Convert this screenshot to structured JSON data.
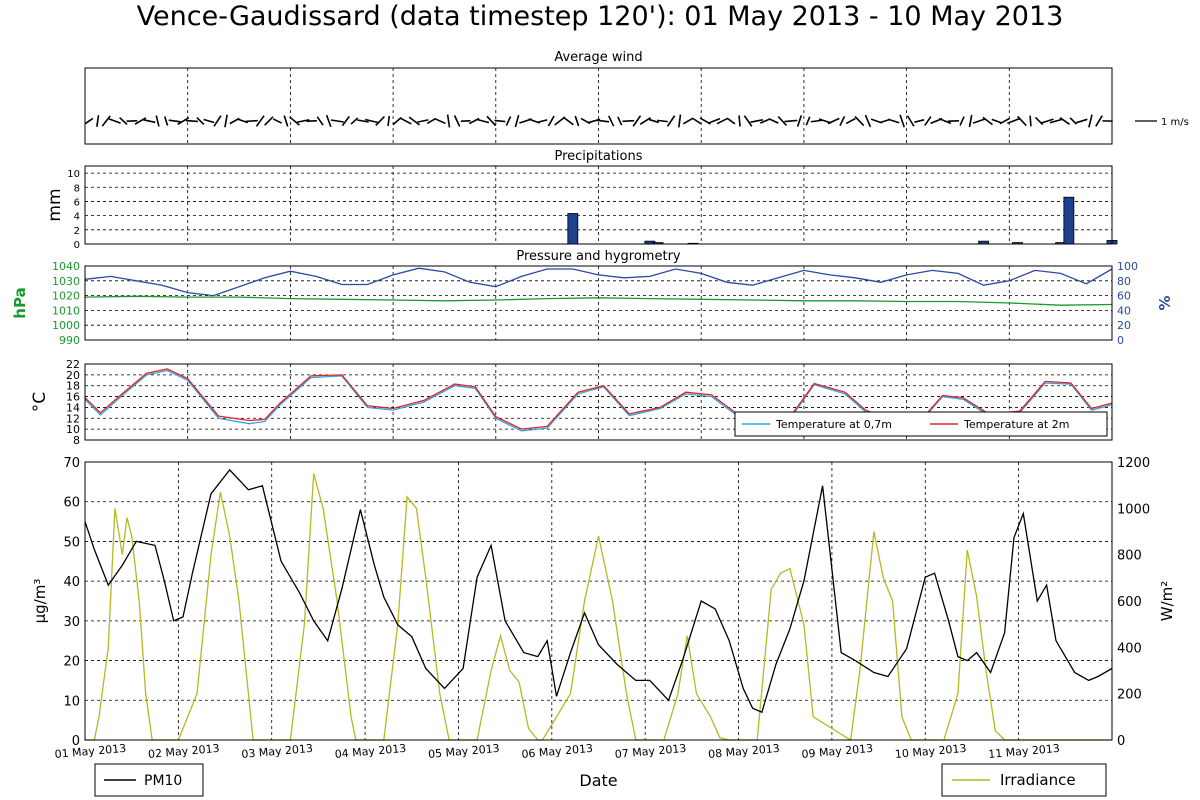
{
  "title": "Vence-Gaudissard (data timestep 120'): 01 May 2013 - 10 May 2013",
  "chart_data": [
    {
      "type": "wind-barbs",
      "title": "Average wind",
      "x_range_days": [
        0,
        10
      ],
      "scale_label": "1 m/s",
      "note": "wind direction/speed shown as short line segments every 2 h"
    },
    {
      "type": "bar",
      "title": "Precipitations",
      "ylabel": "mm",
      "ylim": [
        0,
        11
      ],
      "yticks": [
        0,
        2,
        4,
        6,
        8,
        10
      ],
      "x_range_days": [
        0,
        10
      ],
      "grid": true,
      "color": "#1f3f8f",
      "bars": [
        {
          "x": 4.75,
          "y": 4.3
        },
        {
          "x": 5.5,
          "y": 0.4
        },
        {
          "x": 5.58,
          "y": 0.2
        },
        {
          "x": 5.92,
          "y": 0.1
        },
        {
          "x": 8.75,
          "y": 0.4
        },
        {
          "x": 9.08,
          "y": 0.2
        },
        {
          "x": 9.5,
          "y": 0.2
        },
        {
          "x": 9.58,
          "y": 6.6
        },
        {
          "x": 10.0,
          "y": 0.5
        }
      ]
    },
    {
      "type": "line",
      "title": "Pressure and hygrometry",
      "ylabel": "hPa",
      "ylabel_right": "%",
      "ylim": [
        990,
        1040
      ],
      "yticks": [
        990,
        1000,
        1010,
        1020,
        1030,
        1040
      ],
      "ylim_right": [
        0,
        100
      ],
      "yticks_right": [
        0,
        20,
        40,
        60,
        80,
        100
      ],
      "left_color": "#1a9a2e",
      "right_color": "#2a4aa0",
      "grid": true,
      "series": [
        {
          "axis": "left",
          "color": "#1a9a2e",
          "x": [
            0,
            0.5,
            1,
            1.5,
            2,
            2.5,
            3,
            3.5,
            4,
            4.5,
            5,
            5.5,
            6,
            6.5,
            7,
            7.5,
            8,
            8.5,
            9,
            9.5,
            10
          ],
          "y": [
            1019,
            1019.5,
            1019,
            1019,
            1018,
            1017.5,
            1017,
            1016.5,
            1017,
            1018,
            1018.5,
            1018,
            1017.5,
            1017,
            1016.5,
            1016.5,
            1016,
            1016,
            1015,
            1013.5,
            1014
          ]
        },
        {
          "axis": "right",
          "color": "#2a4aa0",
          "x": [
            0,
            0.25,
            0.5,
            0.75,
            1,
            1.25,
            1.5,
            1.75,
            2,
            2.25,
            2.5,
            2.75,
            3,
            3.25,
            3.5,
            3.75,
            4,
            4.25,
            4.5,
            4.75,
            5,
            5.25,
            5.5,
            5.75,
            6,
            6.25,
            6.5,
            6.75,
            7,
            7.25,
            7.5,
            7.75,
            8,
            8.25,
            8.5,
            8.75,
            9,
            9.25,
            9.5,
            9.75,
            10
          ],
          "y": [
            82,
            86,
            80,
            74,
            64,
            60,
            72,
            84,
            93,
            86,
            75,
            75,
            88,
            97,
            92,
            78,
            72,
            86,
            96,
            96,
            88,
            84,
            86,
            96,
            90,
            78,
            74,
            84,
            94,
            88,
            84,
            78,
            88,
            94,
            90,
            74,
            80,
            94,
            90,
            76,
            96
          ]
        }
      ]
    },
    {
      "type": "line",
      "title": "",
      "ylabel": "°C",
      "ylim": [
        8,
        22
      ],
      "yticks": [
        8,
        10,
        12,
        14,
        16,
        18,
        20,
        22
      ],
      "grid": true,
      "legend_position": "lower-right",
      "series": [
        {
          "name": "Temperature at 0,7m",
          "color": "#29a9e0",
          "x": [
            0,
            0.15,
            0.35,
            0.6,
            0.8,
            1,
            1.3,
            1.6,
            1.75,
            1.9,
            2.2,
            2.5,
            2.75,
            3,
            3.3,
            3.6,
            3.8,
            4,
            4.25,
            4.5,
            4.8,
            5.05,
            5.3,
            5.6,
            5.85,
            6.1,
            6.35,
            6.6,
            6.85,
            7.1,
            7.4,
            7.6,
            7.85,
            8.1,
            8.35,
            8.55,
            8.8,
            9.1,
            9.35,
            9.6,
            9.8,
            10
          ],
          "y": [
            15.5,
            12.6,
            16,
            20,
            20.8,
            19,
            12,
            11,
            11.4,
            14.5,
            19.5,
            19.8,
            14,
            13.5,
            15,
            18,
            17.5,
            12,
            9.7,
            10.2,
            16.5,
            17.8,
            12.5,
            13.8,
            16.5,
            16,
            12.5,
            12.2,
            11.5,
            18.2,
            16.5,
            13.2,
            11.3,
            10.5,
            16,
            15.5,
            12.5,
            13,
            18.5,
            18.3,
            13.5,
            14.5
          ]
        },
        {
          "name": "Temperature at 2m",
          "color": "#e8202a",
          "x": [
            0,
            0.15,
            0.35,
            0.6,
            0.8,
            1,
            1.3,
            1.6,
            1.75,
            1.9,
            2.2,
            2.5,
            2.75,
            3,
            3.3,
            3.6,
            3.8,
            4,
            4.25,
            4.5,
            4.8,
            5.05,
            5.3,
            5.6,
            5.85,
            6.1,
            6.35,
            6.6,
            6.85,
            7.1,
            7.4,
            7.6,
            7.85,
            8.1,
            8.35,
            8.55,
            8.8,
            9.1,
            9.35,
            9.6,
            9.8,
            10
          ],
          "y": [
            15.8,
            13,
            16.3,
            20.3,
            21.1,
            19.3,
            12.4,
            11.6,
            11.8,
            14.8,
            19.8,
            20,
            14.3,
            13.8,
            15.3,
            18.3,
            17.8,
            12.3,
            10,
            10.5,
            16.8,
            18,
            12.8,
            14,
            16.8,
            16.3,
            12.8,
            12.5,
            11.8,
            18.4,
            16.8,
            13.5,
            11.6,
            10.8,
            16.2,
            15.8,
            12.8,
            13.3,
            18.8,
            18.5,
            13.8,
            14.8
          ]
        }
      ]
    },
    {
      "type": "line",
      "title": "",
      "xlabel": "Date",
      "ylabel": "μg/m³",
      "ylabel_right": "W/m²",
      "ylim": [
        0,
        70
      ],
      "yticks": [
        0,
        10,
        20,
        30,
        40,
        50,
        60,
        70
      ],
      "ylim_right": [
        0,
        1200
      ],
      "yticks_right": [
        0,
        200,
        400,
        600,
        800,
        1000,
        1200
      ],
      "xticks_days": [
        0,
        1,
        2,
        3,
        4,
        5,
        6,
        7,
        8,
        9,
        10
      ],
      "xtick_labels": [
        "01 May 2013",
        "02 May 2013",
        "03 May 2013",
        "04 May 2013",
        "05 May 2013",
        "06 May 2013",
        "07 May 2013",
        "08 May 2013",
        "09 May 2013",
        "10 May 2013",
        "11 May 2013"
      ],
      "grid": true,
      "legend_entries": [
        {
          "name": "PM10",
          "color": "#000000",
          "position": "bottom-left"
        },
        {
          "name": "Irradiance",
          "color": "#b8b820",
          "position": "bottom-right"
        }
      ],
      "series": [
        {
          "name": "PM10",
          "axis": "left",
          "color": "#000000",
          "x": [
            0,
            0.1,
            0.25,
            0.4,
            0.55,
            0.75,
            0.85,
            0.95,
            1.05,
            1.15,
            1.35,
            1.55,
            1.75,
            1.9,
            2.1,
            2.3,
            2.45,
            2.6,
            2.75,
            2.95,
            3.1,
            3.2,
            3.35,
            3.5,
            3.65,
            3.85,
            4.05,
            4.2,
            4.35,
            4.5,
            4.7,
            4.85,
            4.95,
            5.05,
            5.2,
            5.35,
            5.5,
            5.7,
            5.9,
            6.05,
            6.25,
            6.4,
            6.6,
            6.75,
            6.9,
            7.05,
            7.15,
            7.25,
            7.4,
            7.55,
            7.7,
            7.9,
            8.1,
            8.25,
            8.45,
            8.6,
            8.8,
            9.0,
            9.1,
            9.25,
            9.35,
            9.45,
            9.55,
            9.7,
            9.85,
            9.95,
            10.05,
            10.2,
            10.3,
            10.4,
            10.6,
            10.75,
            10.85,
            11.0
          ],
          "y": [
            55,
            48,
            39,
            44,
            50,
            49,
            40,
            30,
            31,
            42,
            62,
            68,
            63,
            64,
            45,
            37,
            30,
            25,
            38,
            58,
            44,
            36,
            29,
            26,
            18,
            13,
            18,
            41,
            49,
            30,
            22,
            21,
            25,
            11,
            22,
            32,
            24,
            19,
            15,
            15,
            10,
            20,
            35,
            33,
            25,
            13,
            8,
            7,
            19,
            28,
            40,
            64,
            22,
            20,
            17,
            16,
            23,
            41,
            42,
            30,
            21,
            20,
            22,
            17,
            27,
            51,
            57,
            35,
            39,
            25,
            17,
            15,
            16,
            18
          ]
        },
        {
          "name": "Irradiance",
          "axis": "right",
          "color": "#b8b820",
          "x": [
            0,
            0.1,
            0.15,
            0.25,
            0.32,
            0.4,
            0.45,
            0.5,
            0.58,
            0.65,
            0.72,
            0.8,
            0.88,
            1.0,
            1.2,
            1.35,
            1.45,
            1.55,
            1.65,
            1.75,
            1.8,
            1.85,
            2.2,
            2.35,
            2.45,
            2.55,
            2.7,
            2.85,
            2.9,
            3.2,
            3.35,
            3.45,
            3.55,
            3.65,
            3.8,
            3.9,
            4.2,
            4.35,
            4.45,
            4.55,
            4.65,
            4.75,
            4.85,
            4.9,
            5.2,
            5.35,
            5.5,
            5.65,
            5.8,
            5.9,
            6.2,
            6.35,
            6.45,
            6.55,
            6.7,
            6.8,
            6.9,
            7.2,
            7.35,
            7.45,
            7.55,
            7.7,
            7.8,
            8.2,
            8.3,
            8.45,
            8.55,
            8.65,
            8.75,
            8.85,
            8.9,
            9.2,
            9.35,
            9.45,
            9.55,
            9.65,
            9.75,
            9.85,
            9.9,
            10.2,
            10.3,
            10.4,
            10.5,
            10.6,
            10.65,
            10.75,
            10.8,
            10.85,
            11.0
          ],
          "y": [
            0,
            0,
            100,
            400,
            1000,
            800,
            960,
            880,
            600,
            200,
            0,
            0,
            0,
            0,
            200,
            800,
            1070,
            880,
            600,
            200,
            0,
            0,
            0,
            500,
            1150,
            1000,
            600,
            100,
            0,
            0,
            500,
            1050,
            1000,
            700,
            200,
            0,
            0,
            300,
            450,
            300,
            250,
            50,
            0,
            0,
            200,
            600,
            880,
            600,
            200,
            0,
            0,
            200,
            450,
            200,
            100,
            10,
            0,
            0,
            650,
            720,
            740,
            500,
            100,
            0,
            300,
            900,
            700,
            600,
            100,
            0,
            0,
            0,
            200,
            820,
            620,
            300,
            40,
            0,
            0,
            0,
            0,
            0,
            0,
            0,
            0,
            0,
            0,
            0,
            0
          ]
        }
      ]
    }
  ]
}
